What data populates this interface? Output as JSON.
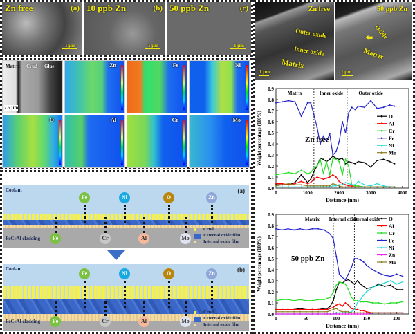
{
  "sem_panels": [
    {
      "title": "Zn free",
      "tag": "(a)",
      "scale": "1 μm"
    },
    {
      "title": "10 ppb Zn",
      "tag": "(b)",
      "scale": "1 μm"
    },
    {
      "title": "50 ppb Zn",
      "tag": "(c)",
      "scale": "1 μm"
    }
  ],
  "tem_panels": [
    {
      "title": "Zn free",
      "labels": [
        "Outer oxide",
        "Inner oxide",
        "Matrix"
      ],
      "scale": "1 μm"
    },
    {
      "title": "50 ppb Zn",
      "labels": [
        "Oxide",
        "Matrix"
      ],
      "scale": "1 μm"
    }
  ],
  "eds_maps": {
    "sem_labels": [
      "Matrix",
      "Crud",
      "Glue"
    ],
    "scale": "2.5 μm",
    "elements": [
      "Zn",
      "Fe",
      "Ni",
      "O",
      "Al",
      "Cr",
      "Mo"
    ]
  },
  "schematic": {
    "panel_a": {
      "tag": "(a)",
      "coolant_label": "Coolant",
      "cladding_label": "FeCrAl cladding",
      "top_elements": [
        "Fe",
        "Ni",
        "O",
        "Zn"
      ],
      "bottom_elements": [
        "Fe",
        "Cr",
        "Al",
        "Mo"
      ]
    },
    "panel_b": {
      "tag": "(b)",
      "coolant_label": "Coolant",
      "cladding_label": "FeCrAl cladding",
      "top_elements": [
        "Fe",
        "Ni",
        "O",
        "Zn"
      ],
      "bottom_elements": [
        "Fe",
        "Cr",
        "Al",
        "Mo"
      ]
    },
    "legend": [
      "Crud",
      "External oxide film",
      "Internal oxide film"
    ],
    "colors": {
      "Fe": "#7cc242",
      "Ni": "#19a9e1",
      "O": "#b8860b",
      "Zn": "#8fa6d8",
      "Cr": "#c8c8c8",
      "Al": "#f5b89a",
      "Mo": "#dfe3f0"
    }
  },
  "chart_data": [
    {
      "type": "line",
      "annotation": "Zn free",
      "xlabel": "Distance (nm)",
      "ylabel": "Weight percentage (100%)",
      "xlim": [
        0,
        4200
      ],
      "ylim": [
        0.0,
        0.9
      ],
      "xticks": [
        0,
        1000,
        2000,
        3000,
        4000
      ],
      "yticks": [
        0.0,
        0.1,
        0.2,
        0.3,
        0.4,
        0.5,
        0.6,
        0.7,
        0.8,
        0.9
      ],
      "regions": [
        {
          "label": "Matrix",
          "x": 600
        },
        {
          "label": "Inner oxide",
          "x": 1750
        },
        {
          "label": "Outer oxide",
          "x": 3000
        }
      ],
      "boundaries": [
        1200,
        2250
      ],
      "legend_position": "right",
      "x": [
        0,
        200,
        400,
        600,
        800,
        1000,
        1100,
        1200,
        1300,
        1400,
        1500,
        1600,
        1700,
        1800,
        1900,
        2000,
        2100,
        2200,
        2300,
        2400,
        2500,
        2600,
        2800,
        3000,
        3200,
        3400,
        3600,
        3750
      ],
      "series": [
        {
          "name": "O",
          "color": "#000000",
          "values": [
            0.03,
            0.03,
            0.03,
            0.05,
            0.12,
            0.05,
            0.08,
            0.15,
            0.2,
            0.27,
            0.26,
            0.24,
            0.26,
            0.29,
            0.27,
            0.26,
            0.27,
            0.22,
            0.24,
            0.23,
            0.22,
            0.24,
            0.23,
            0.19,
            0.25,
            0.26,
            0.24,
            0.22
          ]
        },
        {
          "name": "Al",
          "color": "#ff0000",
          "values": [
            0.04,
            0.04,
            0.03,
            0.04,
            0.06,
            0.04,
            0.05,
            0.08,
            0.1,
            0.09,
            0.08,
            0.09,
            0.1,
            0.12,
            0.1,
            0.06,
            0.04,
            0.03,
            0.02,
            0.02,
            0.01,
            0.01,
            0.01,
            0.01,
            0.01,
            0.01,
            0.01,
            0.01
          ]
        },
        {
          "name": "Cr",
          "color": "#22dd22",
          "values": [
            0.12,
            0.13,
            0.14,
            0.13,
            0.16,
            0.13,
            0.14,
            0.18,
            0.2,
            0.26,
            0.13,
            0.24,
            0.12,
            0.27,
            0.26,
            0.24,
            0.12,
            0.26,
            0.2,
            0.03,
            0.02,
            0.02,
            0.01,
            0.01,
            0.01,
            0.01,
            0.01,
            0.01
          ]
        },
        {
          "name": "Fe",
          "color": "#2222cc",
          "values": [
            0.77,
            0.78,
            0.79,
            0.78,
            0.65,
            0.77,
            0.77,
            0.66,
            0.55,
            0.4,
            0.47,
            0.42,
            0.49,
            0.3,
            0.33,
            0.42,
            0.6,
            0.5,
            0.68,
            0.73,
            0.71,
            0.74,
            0.73,
            0.79,
            0.72,
            0.73,
            0.75,
            0.74
          ]
        },
        {
          "name": "Ni",
          "color": "#22dddd",
          "values": [
            0.01,
            0.01,
            0.01,
            0.01,
            0.01,
            0.01,
            0.01,
            0.01,
            0.01,
            0.01,
            0.01,
            0.01,
            0.01,
            0.02,
            0.02,
            0.03,
            0.03,
            0.05,
            0.04,
            0.03,
            0.03,
            0.06,
            0.03,
            0.02,
            0.04,
            0.02,
            0.01,
            0.01
          ]
        },
        {
          "name": "Mo",
          "color": "#8b7a1a",
          "values": [
            0.02,
            0.03,
            0.04,
            0.03,
            0.03,
            0.02,
            0.02,
            0.02,
            0.02,
            0.02,
            0.02,
            0.02,
            0.02,
            0.04,
            0.03,
            0.02,
            0.01,
            0.01,
            0.01,
            0.01,
            0.01,
            0.01,
            0.01,
            0.01,
            0.01,
            0.01,
            0.01,
            0.01
          ]
        }
      ]
    },
    {
      "type": "line",
      "annotation": "50 ppb Zn",
      "xlabel": "Distance (nm)",
      "ylabel": "Weight percentage (100%)",
      "xlim": [
        0,
        220
      ],
      "ylim": [
        0.0,
        0.9
      ],
      "xticks": [
        0,
        50,
        100,
        150,
        200
      ],
      "yticks": [
        0.0,
        0.1,
        0.2,
        0.3,
        0.4,
        0.5,
        0.6,
        0.7,
        0.8,
        0.9
      ],
      "regions": [
        {
          "label": "Matrix",
          "x": 60
        },
        {
          "label": "Internal oxide",
          "x": 112
        },
        {
          "label": "External oxide",
          "x": 148
        }
      ],
      "boundaries": [
        95,
        130
      ],
      "legend_position": "top-right",
      "x": [
        0,
        10,
        20,
        30,
        40,
        50,
        60,
        70,
        80,
        85,
        90,
        95,
        100,
        105,
        110,
        115,
        120,
        125,
        130,
        135,
        140,
        145,
        150,
        160,
        170,
        180,
        190,
        200,
        210
      ],
      "series": [
        {
          "name": "O",
          "color": "#000000",
          "values": [
            0.04,
            0.04,
            0.04,
            0.04,
            0.05,
            0.04,
            0.04,
            0.04,
            0.05,
            0.05,
            0.07,
            0.12,
            0.22,
            0.29,
            0.28,
            0.3,
            0.31,
            0.29,
            0.27,
            0.3,
            0.27,
            0.25,
            0.23,
            0.24,
            0.27,
            0.25,
            0.26,
            0.22,
            0.22
          ]
        },
        {
          "name": "Al",
          "color": "#ff0000",
          "values": [
            0.04,
            0.04,
            0.04,
            0.04,
            0.04,
            0.04,
            0.04,
            0.04,
            0.04,
            0.04,
            0.05,
            0.06,
            0.08,
            0.09,
            0.07,
            0.1,
            0.08,
            0.05,
            0.04,
            0.04,
            0.03,
            0.03,
            0.02,
            0.01,
            0.01,
            0.01,
            0.01,
            0.01,
            0.01
          ]
        },
        {
          "name": "Cr",
          "color": "#22dd22",
          "values": [
            0.12,
            0.13,
            0.13,
            0.12,
            0.13,
            0.12,
            0.12,
            0.13,
            0.13,
            0.14,
            0.15,
            0.2,
            0.26,
            0.29,
            0.28,
            0.27,
            0.22,
            0.15,
            0.12,
            0.12,
            0.11,
            0.11,
            0.11,
            0.1,
            0.1,
            0.09,
            0.1,
            0.1,
            0.11
          ]
        },
        {
          "name": "Fe",
          "color": "#2222cc",
          "values": [
            0.77,
            0.76,
            0.77,
            0.76,
            0.77,
            0.76,
            0.77,
            0.77,
            0.76,
            0.74,
            0.72,
            0.68,
            0.52,
            0.36,
            0.33,
            0.31,
            0.36,
            0.42,
            0.5,
            0.5,
            0.49,
            0.47,
            0.44,
            0.4,
            0.37,
            0.35,
            0.34,
            0.36,
            0.34
          ]
        },
        {
          "name": "Ni",
          "color": "#22dddd",
          "values": [
            0.0,
            0.0,
            0.0,
            0.0,
            0.0,
            0.0,
            0.0,
            0.0,
            0.0,
            0.0,
            0.0,
            0.0,
            0.01,
            0.01,
            0.01,
            0.01,
            0.01,
            0.02,
            0.04,
            0.1,
            0.13,
            0.17,
            0.2,
            0.24,
            0.26,
            0.28,
            0.3,
            0.27,
            0.29
          ]
        },
        {
          "name": "Zn",
          "color": "#ee22ee",
          "values": [
            0.0,
            0.0,
            0.0,
            0.0,
            0.0,
            0.0,
            0.0,
            0.0,
            0.0,
            0.0,
            0.0,
            0.0,
            0.0,
            0.0,
            0.0,
            0.0,
            0.0,
            0.0,
            0.0,
            0.0,
            0.0,
            0.0,
            0.0,
            0.01,
            0.01,
            0.01,
            0.01,
            0.01,
            0.01
          ]
        },
        {
          "name": "Mo",
          "color": "#8b7a1a",
          "values": [
            0.02,
            0.02,
            0.02,
            0.02,
            0.02,
            0.02,
            0.02,
            0.02,
            0.02,
            0.02,
            0.03,
            0.04,
            0.05,
            0.03,
            0.02,
            0.02,
            0.02,
            0.01,
            0.01,
            0.01,
            0.01,
            0.01,
            0.01,
            0.01,
            0.01,
            0.01,
            0.01,
            0.01,
            0.01
          ]
        }
      ]
    }
  ]
}
